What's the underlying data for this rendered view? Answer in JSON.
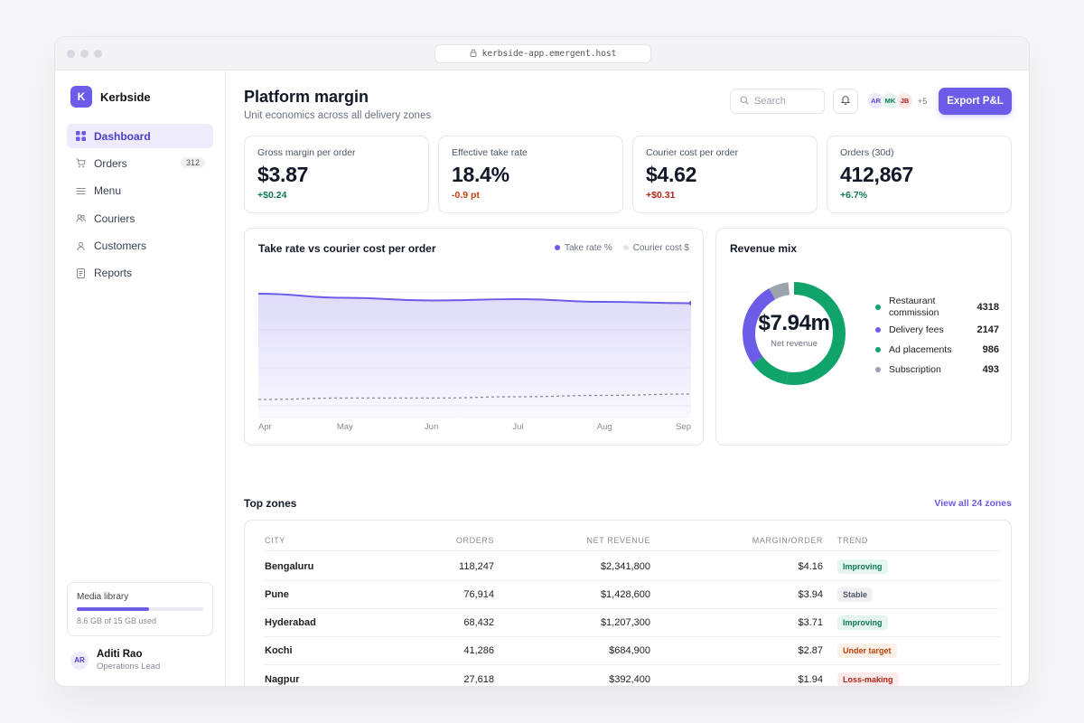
{
  "browser": {
    "url": "kerbside-app.emergent.host"
  },
  "brand": {
    "logo_letter": "K",
    "name": "Kerbside"
  },
  "sidebar": {
    "items": [
      {
        "label": "Dashboard",
        "icon": "grid-icon",
        "active": true
      },
      {
        "label": "Orders",
        "icon": "cart-icon",
        "badge": "312"
      },
      {
        "label": "Menu",
        "icon": "menu-icon"
      },
      {
        "label": "Couriers",
        "icon": "users-icon"
      },
      {
        "label": "Customers",
        "icon": "user-icon"
      },
      {
        "label": "Reports",
        "icon": "document-icon"
      }
    ],
    "media": {
      "title": "Media library",
      "used_fraction": 0.573,
      "usage_text": "8.6 GB of 15 GB used"
    },
    "user": {
      "initials": "AR",
      "name": "Aditi Rao",
      "role": "Operations Lead"
    }
  },
  "header": {
    "title": "Platform margin",
    "subtitle": "Unit economics across all delivery zones",
    "search_placeholder": "Search",
    "avatars": [
      {
        "initials": "AR",
        "color": "#5b4bd6",
        "bg": "#ece9fd"
      },
      {
        "initials": "MK",
        "color": "#0f7a52",
        "bg": "#e2f5ec"
      },
      {
        "initials": "JB",
        "color": "#b42318",
        "bg": "#fde8e6"
      }
    ],
    "avatar_more": "+5",
    "export_label": "Export P&L"
  },
  "kpis": [
    {
      "label": "Gross margin per order",
      "value": "$3.87",
      "delta": "+$0.24",
      "delta_color": "#0f7a52"
    },
    {
      "label": "Effective take rate",
      "value": "18.4%",
      "delta": "-0.9 pt",
      "delta_color": "#c2410c"
    },
    {
      "label": "Courier cost per order",
      "value": "$4.62",
      "delta": "+$0.31",
      "delta_color": "#b42318"
    },
    {
      "label": "Orders (30d)",
      "value": "412,867",
      "delta": "+6.7%",
      "delta_color": "#0f7a52"
    }
  ],
  "trend_chart": {
    "title": "Take rate vs courier cost per order",
    "legend": [
      {
        "label": "Take rate %",
        "color": "#6c5ce7"
      },
      {
        "label": "Courier cost $",
        "color": "#e2e2e8"
      }
    ]
  },
  "chart_data": [
    {
      "type": "area",
      "title": "Take rate vs courier cost per order",
      "x": [
        "Apr",
        "May",
        "Jun",
        "Jul",
        "Aug",
        "Sep"
      ],
      "series": [
        {
          "name": "Take rate %",
          "values": [
            0.92,
            0.89,
            0.87,
            0.88,
            0.86,
            0.85
          ],
          "color": "#6c5ce7"
        },
        {
          "name": "Courier cost $",
          "values": [
            0.14,
            0.15,
            0.15,
            0.16,
            0.17,
            0.18
          ],
          "color": "#8a8a95"
        }
      ],
      "ylim": [
        0,
        1
      ],
      "grid": true,
      "legend_placement": "top-right"
    },
    {
      "type": "pie",
      "title": "Revenue mix",
      "center_value": "$7.94m",
      "center_label": "Net revenue",
      "slices": [
        {
          "label": "Restaurant commission",
          "value": 4318,
          "color": "#10a36a"
        },
        {
          "label": "Delivery fees",
          "value": 2147,
          "color": "#6c5ce7"
        },
        {
          "label": "Ad placements",
          "value": 986,
          "color": "#10a36a"
        },
        {
          "label": "Subscription",
          "value": 493,
          "color": "#9ca3af"
        }
      ]
    }
  ],
  "zones": {
    "title": "Top zones",
    "view_all": "View all 24 zones",
    "columns": [
      "CITY",
      "ORDERS",
      "NET REVENUE",
      "MARGIN/ORDER",
      "TREND"
    ],
    "rows": [
      {
        "city": "Bengaluru",
        "orders": "118,247",
        "revenue": "$2,341,800",
        "margin": "$4.16",
        "trend": "Improving",
        "trend_color": "#0f7a52",
        "trend_bg": "#e4f6ee"
      },
      {
        "city": "Pune",
        "orders": "76,914",
        "revenue": "$1,428,600",
        "margin": "$3.94",
        "trend": "Stable",
        "trend_color": "#4b5563",
        "trend_bg": "#f0f0f3"
      },
      {
        "city": "Hyderabad",
        "orders": "68,432",
        "revenue": "$1,207,300",
        "margin": "$3.71",
        "trend": "Improving",
        "trend_color": "#0f7a52",
        "trend_bg": "#e4f6ee"
      },
      {
        "city": "Kochi",
        "orders": "41,286",
        "revenue": "$684,900",
        "margin": "$2.87",
        "trend": "Under target",
        "trend_color": "#c2410c",
        "trend_bg": "#fdf0e6"
      },
      {
        "city": "Nagpur",
        "orders": "27,618",
        "revenue": "$392,400",
        "margin": "$1.94",
        "trend": "Loss-making",
        "trend_color": "#b42318",
        "trend_bg": "#fdeceb"
      }
    ]
  }
}
